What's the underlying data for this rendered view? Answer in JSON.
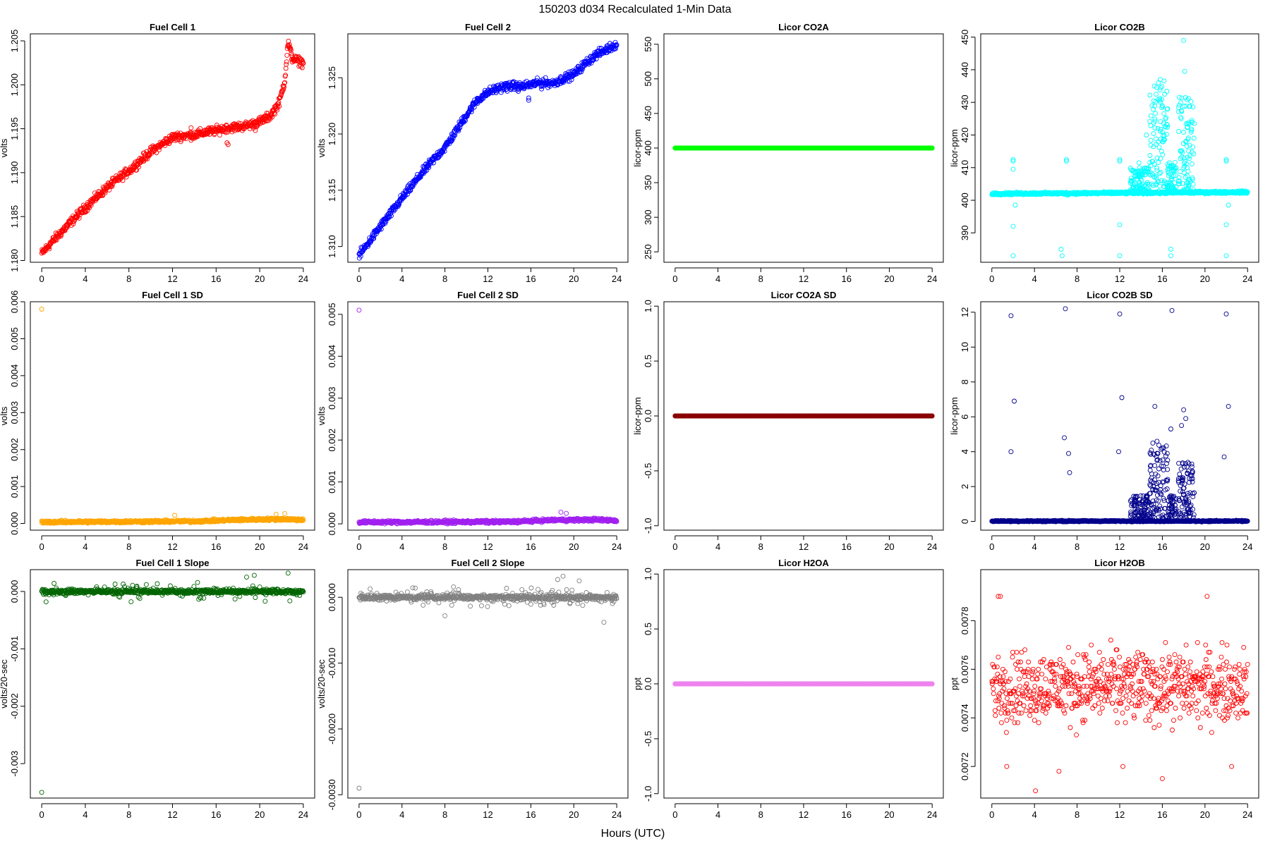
{
  "page": {
    "title": "150203   d034   Recalculated 1-Min Data",
    "xlabel": "Hours (UTC)"
  },
  "chart_data": [
    {
      "type": "scatter",
      "title": "Fuel Cell 1",
      "ylabel": "volts",
      "color": "#ff0000",
      "xlim": [
        0,
        24
      ],
      "ylim": [
        1.1798,
        1.2058
      ],
      "xticks": [
        0,
        4,
        8,
        12,
        16,
        20,
        24
      ],
      "yticks": [
        1.18,
        1.185,
        1.19,
        1.195,
        1.2,
        1.205
      ],
      "ytick_decimals": 3,
      "trend": [
        [
          0,
          1.1808
        ],
        [
          1,
          1.1822
        ],
        [
          2,
          1.1835
        ],
        [
          3,
          1.1848
        ],
        [
          4,
          1.186
        ],
        [
          5,
          1.1872
        ],
        [
          6,
          1.1883
        ],
        [
          7,
          1.1893
        ],
        [
          8,
          1.1902
        ],
        [
          9,
          1.1913
        ],
        [
          10,
          1.1924
        ],
        [
          11,
          1.1932
        ],
        [
          12,
          1.194
        ],
        [
          13,
          1.1942
        ],
        [
          14,
          1.1943
        ],
        [
          15,
          1.1946
        ],
        [
          16,
          1.1948
        ],
        [
          17,
          1.1951
        ],
        [
          18,
          1.1952
        ],
        [
          19,
          1.1954
        ],
        [
          20,
          1.1958
        ],
        [
          21,
          1.1965
        ],
        [
          21.8,
          1.198
        ],
        [
          22.3,
          1.2005
        ],
        [
          22.6,
          1.2048
        ],
        [
          23,
          1.203
        ],
        [
          24,
          1.2025
        ]
      ],
      "noise": 0.0004,
      "extra_points": [
        [
          17.0,
          1.1934
        ],
        [
          17.1,
          1.1932
        ],
        [
          19.6,
          1.1948
        ],
        [
          13.7,
          1.1951
        ]
      ]
    },
    {
      "type": "scatter",
      "title": "Fuel Cell 2",
      "ylabel": "volts",
      "color": "#0000ff",
      "xlim": [
        0,
        24
      ],
      "ylim": [
        1.3086,
        1.3289
      ],
      "xticks": [
        0,
        4,
        8,
        12,
        16,
        20,
        24
      ],
      "yticks": [
        1.31,
        1.315,
        1.32,
        1.325
      ],
      "ytick_decimals": 3,
      "trend": [
        [
          0,
          1.3092
        ],
        [
          1,
          1.3105
        ],
        [
          2,
          1.3118
        ],
        [
          3,
          1.313
        ],
        [
          4,
          1.3143
        ],
        [
          5,
          1.3155
        ],
        [
          6,
          1.3167
        ],
        [
          7,
          1.3178
        ],
        [
          8,
          1.3188
        ],
        [
          9,
          1.3202
        ],
        [
          10,
          1.3217
        ],
        [
          11,
          1.323
        ],
        [
          12,
          1.3237
        ],
        [
          13,
          1.3241
        ],
        [
          14,
          1.3243
        ],
        [
          15,
          1.3242
        ],
        [
          16,
          1.3244
        ],
        [
          17,
          1.3246
        ],
        [
          18,
          1.3245
        ],
        [
          19,
          1.3249
        ],
        [
          20,
          1.3253
        ],
        [
          21,
          1.3262
        ],
        [
          22,
          1.327
        ],
        [
          23,
          1.3275
        ],
        [
          24,
          1.328
        ]
      ],
      "noise": 0.0003,
      "extra_points": [
        [
          15.8,
          1.3232
        ],
        [
          15.8,
          1.323
        ],
        [
          17.0,
          1.324
        ],
        [
          13.8,
          1.3238
        ]
      ]
    },
    {
      "type": "scatter",
      "title": "Licor CO2A",
      "ylabel": "licor-ppm",
      "color": "#00ff00",
      "xlim": [
        0,
        24
      ],
      "ylim": [
        235,
        565
      ],
      "xticks": [
        0,
        4,
        8,
        12,
        16,
        20,
        24
      ],
      "yticks": [
        250,
        300,
        350,
        400,
        450,
        500,
        550
      ],
      "ytick_decimals": 0,
      "trend": [
        [
          0,
          400
        ],
        [
          24,
          400
        ]
      ],
      "noise": 0,
      "extra_points": []
    },
    {
      "type": "scatter",
      "title": "Licor CO2B",
      "ylabel": "licor-ppm",
      "color": "#00ffff",
      "xlim": [
        0,
        24
      ],
      "ylim": [
        381,
        451
      ],
      "xticks": [
        0,
        4,
        8,
        12,
        16,
        20,
        24
      ],
      "yticks": [
        390,
        400,
        410,
        420,
        430,
        440,
        450
      ],
      "ytick_decimals": 0,
      "trend": [
        [
          0,
          402
        ],
        [
          24,
          402.5
        ]
      ],
      "noise": 0.3,
      "extra_points": [
        [
          2,
          412.5
        ],
        [
          2,
          412
        ],
        [
          2,
          409.5
        ],
        [
          2,
          392
        ],
        [
          2,
          383
        ],
        [
          2.2,
          398.5
        ],
        [
          6.5,
          385
        ],
        [
          6.6,
          383
        ],
        [
          7,
          412.5
        ],
        [
          7,
          412
        ],
        [
          7.1,
          401.5
        ],
        [
          12,
          412.5
        ],
        [
          12,
          412
        ],
        [
          12,
          392.5
        ],
        [
          12,
          383
        ],
        [
          16.8,
          385
        ],
        [
          16.8,
          383
        ],
        [
          22,
          412.5
        ],
        [
          22,
          412
        ],
        [
          22,
          392.5
        ],
        [
          22,
          383
        ],
        [
          22.2,
          398.5
        ],
        [
          18,
          449
        ],
        [
          18.1,
          439.5
        ],
        [
          15.2,
          430.5
        ],
        [
          16.5,
          428
        ],
        [
          13.8,
          411.5
        ],
        [
          15,
          405
        ],
        [
          17.5,
          405
        ],
        [
          19,
          423.5
        ],
        [
          14.5,
          420
        ],
        [
          15.8,
          437
        ]
      ],
      "bursts": [
        [
          13,
          14.8,
          402,
          410
        ],
        [
          14.8,
          16.5,
          404,
          437
        ],
        [
          16.5,
          17.3,
          403,
          412
        ],
        [
          17.5,
          19,
          403,
          432
        ]
      ]
    },
    {
      "type": "scatter",
      "title": "Fuel Cell 1 SD",
      "ylabel": "volts",
      "color": "#ffa500",
      "xlim": [
        0,
        24
      ],
      "ylim": [
        -0.00018,
        0.006
      ],
      "xticks": [
        0,
        4,
        8,
        12,
        16,
        20,
        24
      ],
      "yticks": [
        0,
        0.001,
        0.002,
        0.003,
        0.004,
        0.005,
        0.006
      ],
      "ytick_decimals": 3,
      "trend": [
        [
          0,
          4e-05
        ],
        [
          14,
          6e-05
        ],
        [
          18,
          0.0001
        ],
        [
          22,
          0.00012
        ],
        [
          24,
          0.0001
        ]
      ],
      "noise": 3e-05,
      "extra_points": [
        [
          0,
          0.0058
        ],
        [
          12.2,
          0.00022
        ],
        [
          21.5,
          0.00025
        ],
        [
          22.3,
          0.00027
        ]
      ]
    },
    {
      "type": "scatter",
      "title": "Fuel Cell 2 SD",
      "ylabel": "volts",
      "color": "#a020f0",
      "xlim": [
        0,
        24
      ],
      "ylim": [
        -0.00015,
        0.0053
      ],
      "xticks": [
        0,
        4,
        8,
        12,
        16,
        20,
        24
      ],
      "yticks": [
        0,
        0.001,
        0.002,
        0.003,
        0.004,
        0.005
      ],
      "ytick_decimals": 3,
      "trend": [
        [
          0,
          4e-05
        ],
        [
          14,
          5e-05
        ],
        [
          18,
          9e-05
        ],
        [
          22,
          0.0001
        ],
        [
          24,
          8e-05
        ]
      ],
      "noise": 3e-05,
      "extra_points": [
        [
          0,
          0.0051
        ],
        [
          18.8,
          0.00028
        ],
        [
          19.3,
          0.00025
        ]
      ]
    },
    {
      "type": "scatter",
      "title": "Licor CO2A SD",
      "ylabel": "licor-ppm",
      "color": "#8b0000",
      "xlim": [
        0,
        24
      ],
      "ylim": [
        -1.04,
        1.04
      ],
      "xticks": [
        0,
        4,
        8,
        12,
        16,
        20,
        24
      ],
      "yticks": [
        -1.0,
        -0.5,
        0.0,
        0.5,
        1.0
      ],
      "ytick_decimals": 1,
      "trend": [
        [
          0,
          0
        ],
        [
          24,
          0
        ]
      ],
      "noise": 0,
      "extra_points": []
    },
    {
      "type": "scatter",
      "title": "Licor CO2B SD",
      "ylabel": "licor-ppm",
      "color": "#00008b",
      "xlim": [
        0,
        24
      ],
      "ylim": [
        -0.5,
        12.6
      ],
      "xticks": [
        0,
        4,
        8,
        12,
        16,
        20,
        24
      ],
      "yticks": [
        0,
        2,
        4,
        6,
        8,
        10,
        12
      ],
      "ytick_decimals": 0,
      "trend": [
        [
          0,
          0.02
        ],
        [
          24,
          0.02
        ]
      ],
      "noise": 0.03,
      "extra_points": [
        [
          1.8,
          11.8
        ],
        [
          2.1,
          6.9
        ],
        [
          1.8,
          4
        ],
        [
          6.9,
          12.2
        ],
        [
          7.2,
          3.9
        ],
        [
          6.8,
          4.8
        ],
        [
          7.3,
          2.8
        ],
        [
          12,
          11.9
        ],
        [
          12.2,
          7.1
        ],
        [
          11.9,
          4
        ],
        [
          16.9,
          12.1
        ],
        [
          16.8,
          5.3
        ],
        [
          17.8,
          5.5
        ],
        [
          18,
          6.4
        ],
        [
          18.2,
          5.9
        ],
        [
          22,
          11.9
        ],
        [
          22.2,
          6.6
        ],
        [
          21.8,
          3.7
        ],
        [
          15.3,
          6.6
        ],
        [
          15.5,
          4.6
        ]
      ],
      "bursts": [
        [
          13,
          14.8,
          0,
          1.5
        ],
        [
          14.8,
          16.5,
          0.2,
          4.5
        ],
        [
          16.5,
          17.3,
          0,
          1.5
        ],
        [
          17.5,
          19,
          0.2,
          3.4
        ]
      ]
    },
    {
      "type": "scatter",
      "title": "Fuel Cell 1 Slope",
      "ylabel": "volts/20-sec",
      "color": "#006400",
      "xlim": [
        0,
        24
      ],
      "ylim": [
        -0.0036,
        0.00038
      ],
      "xticks": [
        0,
        4,
        8,
        12,
        16,
        20,
        24
      ],
      "yticks": [
        -0.003,
        -0.002,
        -0.001,
        0.0
      ],
      "ytick_decimals": 3,
      "trend": [
        [
          0,
          0
        ],
        [
          24,
          0
        ]
      ],
      "noise": 3e-05,
      "extra_points": [
        [
          0,
          -0.0035
        ],
        [
          22.6,
          0.00032
        ],
        [
          19.5,
          0.00028
        ],
        [
          18.8,
          0.00025
        ],
        [
          8.2,
          -0.00018
        ],
        [
          20.5,
          -0.00017
        ]
      ],
      "spread": 0.00012
    },
    {
      "type": "scatter",
      "title": "Fuel Cell 2 Slope",
      "ylabel": "volts/20-sec",
      "color": "#808080",
      "xlim": [
        0,
        24
      ],
      "ylim": [
        -0.00305,
        0.00042
      ],
      "xticks": [
        0,
        4,
        8,
        12,
        16,
        20,
        24
      ],
      "yticks": [
        -0.003,
        -0.002,
        -0.001,
        0.0
      ],
      "ytick_decimals": 4,
      "trend": [
        [
          0,
          0
        ],
        [
          24,
          0
        ]
      ],
      "noise": 3e-05,
      "extra_points": [
        [
          0,
          -0.0029
        ],
        [
          19,
          0.00032
        ],
        [
          18.5,
          0.00027
        ],
        [
          20.5,
          0.00025
        ],
        [
          22.8,
          -0.00038
        ],
        [
          8,
          -0.00028
        ]
      ],
      "spread": 0.00012
    },
    {
      "type": "scatter",
      "title": "Licor H2OA",
      "ylabel": "ppt",
      "color": "#ee82ee",
      "xlim": [
        0,
        24
      ],
      "ylim": [
        -1.04,
        1.04
      ],
      "xticks": [
        0,
        4,
        8,
        12,
        16,
        20,
        24
      ],
      "yticks": [
        -1.0,
        -0.5,
        0.0,
        0.5,
        1.0
      ],
      "ytick_decimals": 1,
      "trend": [
        [
          0,
          0
        ],
        [
          24,
          0
        ]
      ],
      "noise": 0,
      "extra_points": []
    },
    {
      "type": "scatter",
      "title": "Licor H2OB",
      "ylabel": "ppt",
      "color": "#ff0000",
      "xlim": [
        0,
        24
      ],
      "ylim": [
        0.00707,
        0.00801
      ],
      "xticks": [
        0,
        4,
        8,
        12,
        16,
        20,
        24
      ],
      "yticks": [
        0.0072,
        0.0074,
        0.0076,
        0.0078
      ],
      "ytick_decimals": 4,
      "quantized": {
        "step": 1e-05,
        "center": 0.00753,
        "spread": 0.00012
      },
      "extra_points": [
        [
          0.6,
          0.0079
        ],
        [
          0.8,
          0.0079
        ],
        [
          20.2,
          0.0079
        ],
        [
          4.1,
          0.0071
        ],
        [
          16,
          0.00715
        ],
        [
          1.4,
          0.0072
        ],
        [
          12.3,
          0.0072
        ],
        [
          22.5,
          0.0072
        ],
        [
          6.3,
          0.00718
        ]
      ],
      "trend": [
        [
          0,
          0.0075
        ],
        [
          24,
          0.0075
        ]
      ],
      "noise": 0
    }
  ]
}
